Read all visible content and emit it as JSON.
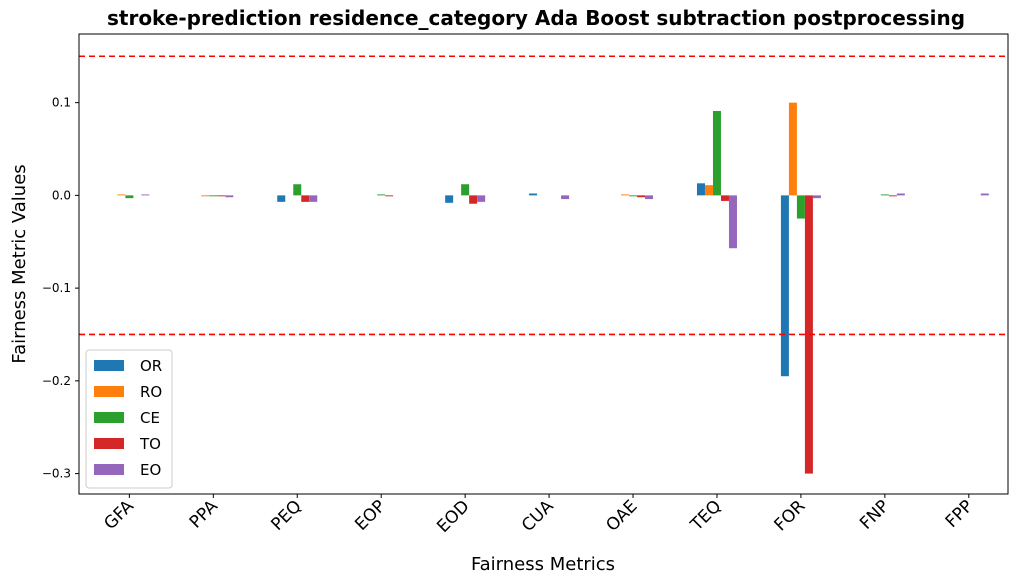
{
  "chart_data": {
    "type": "bar",
    "title": "stroke-prediction residence_category Ada Boost subtraction postprocessing",
    "xlabel": "Fairness Metrics",
    "ylabel": "Fairness Metric Values",
    "categories": [
      "GFA",
      "PPA",
      "PEQ",
      "EOP",
      "EOD",
      "CUA",
      "OAE",
      "TEQ",
      "FOR",
      "FNP",
      "FPP"
    ],
    "series": [
      {
        "name": "OR",
        "color": "#1f77b4",
        "values": [
          0.0,
          0.0,
          -0.007,
          0.0,
          -0.008,
          0.002,
          0.0,
          0.013,
          -0.195,
          0.0,
          0.0
        ]
      },
      {
        "name": "RO",
        "color": "#ff7f0e",
        "values": [
          0.001,
          -0.001,
          0.0,
          0.0,
          0.0,
          0.0,
          0.001,
          0.011,
          0.1,
          0.0,
          0.0
        ]
      },
      {
        "name": "CE",
        "color": "#2ca02c",
        "values": [
          -0.003,
          -0.001,
          0.012,
          0.001,
          0.012,
          0.0,
          -0.001,
          0.091,
          -0.025,
          0.001,
          0.0
        ]
      },
      {
        "name": "TO",
        "color": "#d62728",
        "values": [
          0.0,
          -0.001,
          -0.007,
          -0.001,
          -0.009,
          0.0,
          -0.002,
          -0.006,
          -0.3,
          -0.001,
          0.0
        ]
      },
      {
        "name": "EO",
        "color": "#9467bd",
        "values": [
          0.001,
          -0.002,
          -0.007,
          0.0,
          -0.007,
          -0.004,
          -0.004,
          -0.057,
          -0.003,
          0.002,
          0.002
        ]
      }
    ],
    "ylim": [
      -0.322,
      0.174
    ],
    "yticks": [
      -0.3,
      -0.2,
      -0.1,
      0.0,
      0.1
    ],
    "ytick_labels": [
      "−0.3",
      "−0.2",
      "−0.1",
      "0.0",
      "0.1"
    ],
    "threshold_lines": [
      0.15,
      -0.15
    ],
    "threshold_color": "#ff0000",
    "legend_position": "lower-left",
    "grid": false
  }
}
